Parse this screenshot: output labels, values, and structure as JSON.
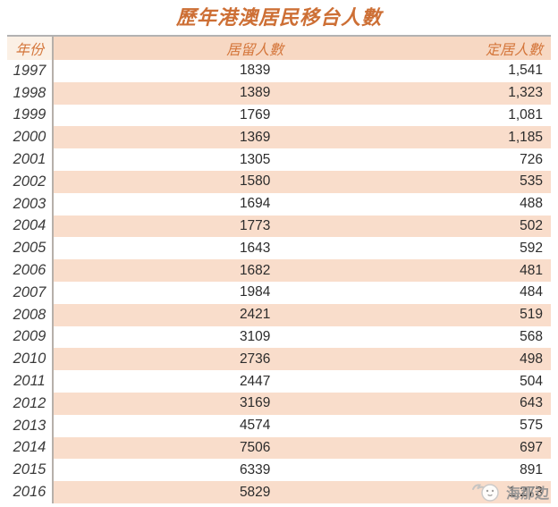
{
  "title": "歷年港澳居民移台人數",
  "table": {
    "columns": [
      "年份",
      "居留人數",
      "定居人數"
    ],
    "rows": [
      {
        "year": "1997",
        "resident": "1839",
        "settle": "1,541"
      },
      {
        "year": "1998",
        "resident": "1389",
        "settle": "1,323"
      },
      {
        "year": "1999",
        "resident": "1769",
        "settle": "1,081"
      },
      {
        "year": "2000",
        "resident": "1369",
        "settle": "1,185"
      },
      {
        "year": "2001",
        "resident": "1305",
        "settle": "726"
      },
      {
        "year": "2002",
        "resident": "1580",
        "settle": "535"
      },
      {
        "year": "2003",
        "resident": "1694",
        "settle": "488"
      },
      {
        "year": "2004",
        "resident": "1773",
        "settle": "502"
      },
      {
        "year": "2005",
        "resident": "1643",
        "settle": "592"
      },
      {
        "year": "2006",
        "resident": "1682",
        "settle": "481"
      },
      {
        "year": "2007",
        "resident": "1984",
        "settle": "484"
      },
      {
        "year": "2008",
        "resident": "2421",
        "settle": "519"
      },
      {
        "year": "2009",
        "resident": "3109",
        "settle": "568"
      },
      {
        "year": "2010",
        "resident": "2736",
        "settle": "498"
      },
      {
        "year": "2011",
        "resident": "2447",
        "settle": "504"
      },
      {
        "year": "2012",
        "resident": "3169",
        "settle": "643"
      },
      {
        "year": "2013",
        "resident": "4574",
        "settle": "575"
      },
      {
        "year": "2014",
        "resident": "7506",
        "settle": "697"
      },
      {
        "year": "2015",
        "resident": "6339",
        "settle": "891"
      },
      {
        "year": "2016",
        "resident": "5829",
        "settle": "1,273"
      }
    ]
  },
  "watermark": {
    "text": "海那边"
  },
  "colors": {
    "title_orange": "#cd6f35",
    "header_orange": "#d4763b",
    "stripe_peach": "#f9ddcb",
    "header_peach": "#f7d8c3",
    "header_year_bg": "#fbf0e5",
    "separator_gray": "#b6b0aa",
    "top_border_gray": "#b2b2b2",
    "body_text": "#2c2c2c",
    "watermark_gray": "#949494"
  },
  "chart_data": {
    "type": "table",
    "title": "歷年港澳居民移台人數",
    "columns": [
      "年份",
      "居留人數",
      "定居人數"
    ],
    "categories": [
      1997,
      1998,
      1999,
      2000,
      2001,
      2002,
      2003,
      2004,
      2005,
      2006,
      2007,
      2008,
      2009,
      2010,
      2011,
      2012,
      2013,
      2014,
      2015,
      2016
    ],
    "series": [
      {
        "name": "居留人數",
        "values": [
          1839,
          1389,
          1769,
          1369,
          1305,
          1580,
          1694,
          1773,
          1643,
          1682,
          1984,
          2421,
          3109,
          2736,
          2447,
          3169,
          4574,
          7506,
          6339,
          5829
        ]
      },
      {
        "name": "定居人數",
        "values": [
          1541,
          1323,
          1081,
          1185,
          726,
          535,
          488,
          502,
          592,
          481,
          484,
          519,
          568,
          498,
          504,
          643,
          575,
          697,
          891,
          1273
        ]
      }
    ],
    "layout": {
      "stripes": "alternating rows, peach on even years",
      "year_column_separated": true
    }
  }
}
